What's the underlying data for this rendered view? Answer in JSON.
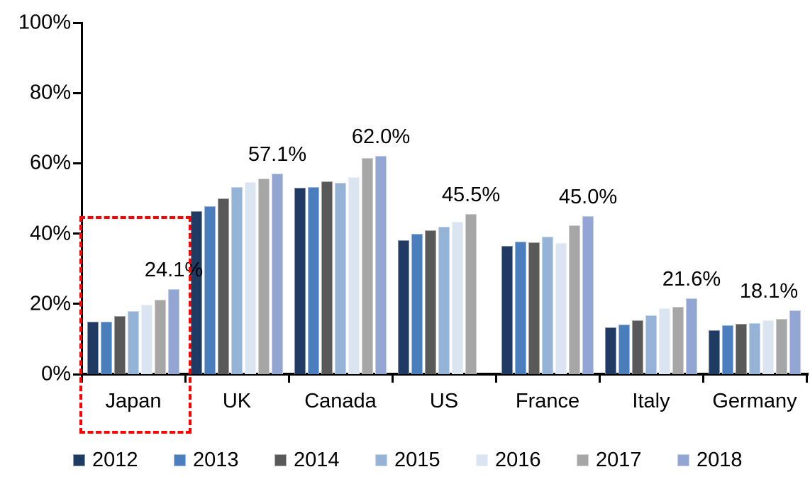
{
  "chart_data": {
    "type": "bar",
    "title": "",
    "xlabel": "",
    "ylabel": "",
    "categories": [
      "Japan",
      "UK",
      "Canada",
      "US",
      "France",
      "Italy",
      "Germany"
    ],
    "series": [
      {
        "name": "2012",
        "color": "#1f3a63",
        "values": [
          14.9,
          46.3,
          53.0,
          38.2,
          36.5,
          13.3,
          12.4
        ]
      },
      {
        "name": "2013",
        "color": "#4a7ebc",
        "values": [
          15.0,
          47.7,
          53.3,
          39.9,
          37.7,
          14.1,
          13.9
        ]
      },
      {
        "name": "2014",
        "color": "#595959",
        "values": [
          16.6,
          49.9,
          54.8,
          41.0,
          37.6,
          15.4,
          14.4
        ]
      },
      {
        "name": "2015",
        "color": "#95b3d7",
        "values": [
          17.9,
          53.3,
          54.5,
          41.9,
          39.2,
          16.8,
          14.6
        ]
      },
      {
        "name": "2016",
        "color": "#dbe5f1",
        "values": [
          19.7,
          54.6,
          56.0,
          43.4,
          37.3,
          18.8,
          15.4
        ]
      },
      {
        "name": "2017",
        "color": "#a6a6a6",
        "values": [
          21.1,
          55.7,
          61.5,
          45.5,
          42.3,
          19.1,
          15.8
        ]
      },
      {
        "name": "2018",
        "color": "#92a5d3",
        "values": [
          24.1,
          57.1,
          62.0,
          null,
          45.0,
          21.6,
          18.1
        ]
      }
    ],
    "data_labels": [
      "24.1%",
      "57.1%",
      "62.0%",
      "45.5%",
      "45.0%",
      "21.6%",
      "18.1%"
    ],
    "y_ticks": {
      "values": [
        0,
        20,
        40,
        60,
        80,
        100
      ],
      "labels": [
        "0%",
        "20%",
        "40%",
        "60%",
        "80%",
        "100%"
      ]
    },
    "ylim": [
      0,
      100
    ],
    "grid": false,
    "legend_position": "bottom",
    "axis_color": "#000000",
    "highlight": {
      "country": "Japan",
      "style": "dashed",
      "color": "#fe0000",
      "top_percent": 45
    }
  }
}
